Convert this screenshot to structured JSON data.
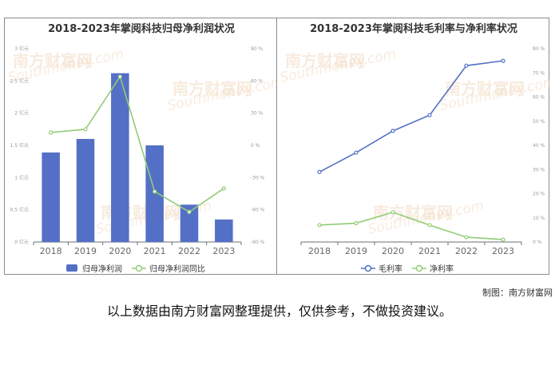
{
  "watermark": {
    "cn": "南方财富网",
    "en": "Southmoney.com"
  },
  "chart_data": [
    {
      "type": "bar",
      "title": "2018-2023年掌阅科技归母净利润状况",
      "categories": [
        "2018",
        "2019",
        "2020",
        "2021",
        "2022",
        "2023"
      ],
      "left_axis": {
        "ticks": [
          "0 亿元",
          "0.5 亿元",
          "1 亿元",
          "1.5 亿元",
          "2 亿元",
          "2.5 亿元",
          "3 亿元"
        ],
        "ylim": [
          0,
          3
        ]
      },
      "right_axis": {
        "ticks": [
          "-90 %",
          "-60 %",
          "-30 %",
          "0 %",
          "30 %",
          "60 %",
          "90 %"
        ],
        "ylim": [
          -90,
          90
        ]
      },
      "series": [
        {
          "name": "归母净利润",
          "kind": "bar",
          "axis": "left",
          "color": "#5470c6",
          "values": [
            1.39,
            1.6,
            2.62,
            1.5,
            0.58,
            0.35
          ]
        },
        {
          "name": "归母净利润同比",
          "kind": "line",
          "axis": "right",
          "color": "#91cc75",
          "values": [
            12,
            15,
            64,
            -43,
            -62,
            -40
          ]
        }
      ],
      "legend": "bottom-center",
      "grid": false
    },
    {
      "type": "line",
      "title": "2018-2023年掌阅科技毛利率与净利率状况",
      "categories": [
        "2018",
        "2019",
        "2020",
        "2021",
        "2022",
        "2023"
      ],
      "right_axis": {
        "ticks": [
          "0 %",
          "10 %",
          "20 %",
          "30 %",
          "40 %",
          "50 %",
          "60 %",
          "70 %",
          "80 %"
        ],
        "ylim": [
          0,
          80
        ]
      },
      "series": [
        {
          "name": "毛利率",
          "kind": "line",
          "color": "#5470c6",
          "values": [
            29,
            37,
            46,
            52.5,
            73,
            75
          ]
        },
        {
          "name": "净利率",
          "kind": "line",
          "color": "#91cc75",
          "values": [
            7,
            7.8,
            12.3,
            7,
            2,
            1
          ]
        }
      ],
      "legend": "bottom-center",
      "grid": false
    }
  ],
  "footer": {
    "credit": "制图：南方财富网",
    "disclaimer": "以上数据由南方财富网整理提供，仅供参考，不做投资建议。"
  }
}
